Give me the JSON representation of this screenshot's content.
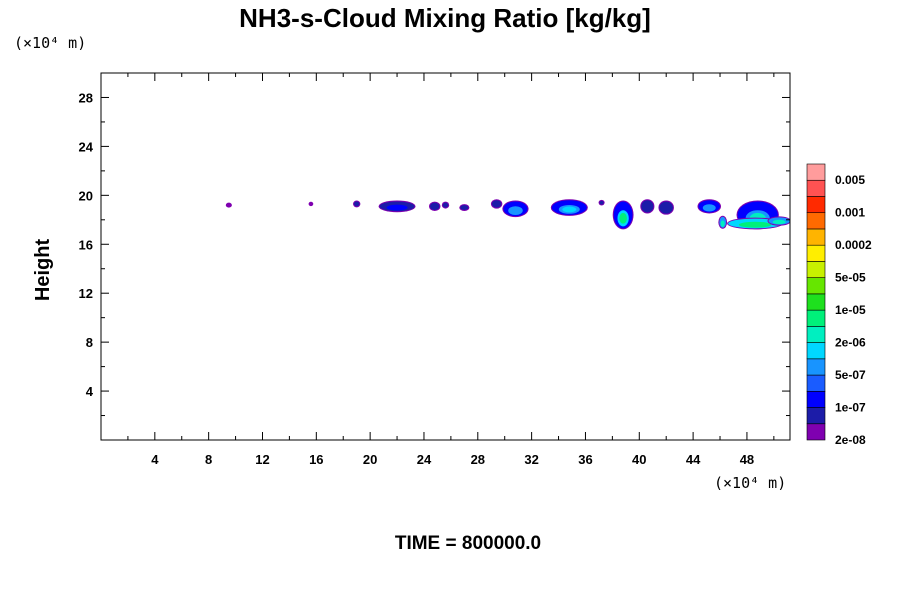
{
  "chart_data": {
    "type": "heatmap",
    "title": "NH3-s-Cloud Mixing Ratio [kg/kg]",
    "ylabel": "Height",
    "xlabel": "",
    "x_unit": "(×10⁴ m)",
    "y_unit": "(×10⁴ m)",
    "footer": "TIME = 800000.0",
    "xlim": [
      0,
      51.2
    ],
    "ylim": [
      0,
      30
    ],
    "x_ticks": [
      4,
      8,
      12,
      16,
      20,
      24,
      28,
      32,
      36,
      40,
      44,
      48
    ],
    "y_ticks": [
      4,
      8,
      12,
      16,
      20,
      24,
      28
    ],
    "colorbar": {
      "labels": [
        "0.005",
        "0.001",
        "0.0002",
        "5e-05",
        "1e-05",
        "2e-06",
        "5e-07",
        "1e-07",
        "2e-08"
      ],
      "colors": [
        "#7f00b0",
        "#1c1ca8",
        "#0000ff",
        "#1a5cff",
        "#1894ff",
        "#00d7ff",
        "#00efc0",
        "#00f07a",
        "#1ee01e",
        "#66e600",
        "#c8f000",
        "#ffee00",
        "#ffb400",
        "#ff6a00",
        "#ff2a00",
        "#ff5252",
        "#ff9c9c"
      ]
    },
    "blobs": [
      {
        "x": 9.5,
        "y": 19.2,
        "rx": 0.15,
        "ry": 0.12,
        "level": 0
      },
      {
        "x": 15.6,
        "y": 19.3,
        "rx": 0.1,
        "ry": 0.08,
        "level": 0
      },
      {
        "x": 19.0,
        "y": 19.3,
        "rx": 0.2,
        "ry": 0.2,
        "level": 1
      },
      {
        "x": 22.0,
        "y": 19.1,
        "rx": 1.3,
        "ry": 0.4,
        "level": 1,
        "inner": [
          2
        ]
      },
      {
        "x": 24.8,
        "y": 19.1,
        "rx": 0.35,
        "ry": 0.3,
        "level": 1
      },
      {
        "x": 25.6,
        "y": 19.2,
        "rx": 0.2,
        "ry": 0.2,
        "level": 1
      },
      {
        "x": 27.0,
        "y": 19.0,
        "rx": 0.3,
        "ry": 0.2,
        "level": 1
      },
      {
        "x": 29.4,
        "y": 19.3,
        "rx": 0.35,
        "ry": 0.3,
        "level": 1
      },
      {
        "x": 30.8,
        "y": 18.9,
        "rx": 0.9,
        "ry": 0.6,
        "level": 2,
        "inner": [
          4
        ]
      },
      {
        "x": 34.8,
        "y": 19.0,
        "rx": 1.3,
        "ry": 0.6,
        "level": 2,
        "inner": [
          4,
          5
        ]
      },
      {
        "x": 37.2,
        "y": 19.4,
        "rx": 0.15,
        "ry": 0.15,
        "level": 1
      },
      {
        "x": 38.8,
        "y": 18.4,
        "rx": 0.7,
        "ry": 1.1,
        "level": 2,
        "inner": [
          5,
          7
        ]
      },
      {
        "x": 40.6,
        "y": 19.1,
        "rx": 0.45,
        "ry": 0.5,
        "level": 1
      },
      {
        "x": 42.0,
        "y": 19.0,
        "rx": 0.5,
        "ry": 0.5,
        "level": 1
      },
      {
        "x": 45.2,
        "y": 19.1,
        "rx": 0.8,
        "ry": 0.5,
        "level": 2,
        "inner": [
          4
        ]
      },
      {
        "x": 46.2,
        "y": 17.8,
        "rx": 0.25,
        "ry": 0.45,
        "level": 4,
        "inner": [
          6
        ]
      },
      {
        "x": 48.8,
        "y": 18.4,
        "rx": 1.5,
        "ry": 1.1,
        "level": 2,
        "inner": [
          4,
          6
        ]
      },
      {
        "x": 48.6,
        "y": 17.7,
        "rx": 2.0,
        "ry": 0.4,
        "level": 5,
        "inner": [
          7
        ]
      },
      {
        "x": 50.4,
        "y": 17.9,
        "rx": 0.8,
        "ry": 0.3,
        "level": 4,
        "inner": [
          6
        ]
      }
    ]
  }
}
